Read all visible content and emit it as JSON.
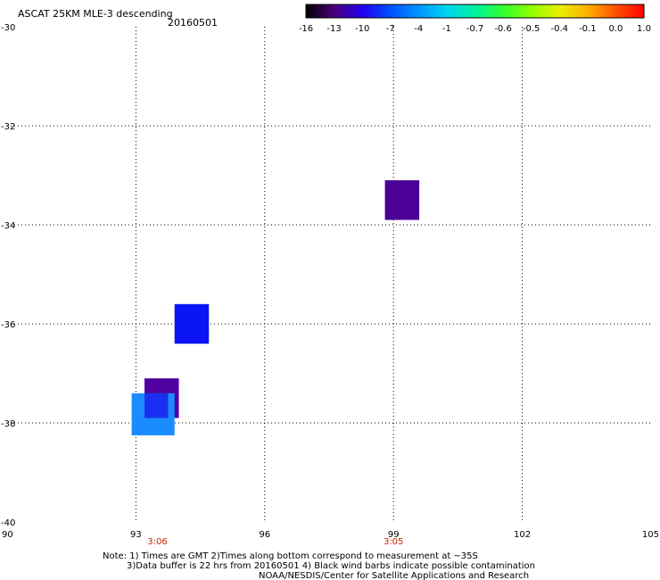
{
  "chart_data": {
    "type": "heatmap",
    "title": "ASCAT 25KM MLE-3 descending",
    "date": "20160501",
    "xlim": [
      90,
      105
    ],
    "ylim": [
      -40,
      -30
    ],
    "x_ticks": [
      90,
      93,
      96,
      99,
      102,
      105
    ],
    "x_tick_labels": [
      "90",
      "93",
      "96",
      "99",
      "102",
      "105"
    ],
    "y_ticks": [
      -30,
      -32,
      -34,
      -36,
      -38,
      -40
    ],
    "y_tick_labels": [
      "-30",
      "-32",
      "-34",
      "-36",
      "-38",
      "-40"
    ],
    "grid": true,
    "colorbar": {
      "labels": [
        "-16",
        "-13",
        "-10",
        "-7",
        "-4",
        "-1",
        "-0.7",
        "-0.6",
        "-0.5",
        "-0.4",
        "-0.1",
        "0.0",
        "1.0"
      ],
      "colors": [
        "#000000",
        "#4a007a",
        "#2200ee",
        "#0050ff",
        "#0095ff",
        "#00d5f0",
        "#00f0a0",
        "#30ff30",
        "#90ff00",
        "#e8f000",
        "#ffb000",
        "#ff5000",
        "#ff0000"
      ],
      "placement": "top-right"
    },
    "cells": [
      {
        "lon_min": 98.8,
        "lon_max": 99.6,
        "lat_min": -33.9,
        "lat_max": -33.1,
        "color": "#4b0096"
      },
      {
        "lon_min": 93.9,
        "lon_max": 94.7,
        "lat_min": -36.4,
        "lat_max": -35.6,
        "color": "#0a14f5"
      },
      {
        "lon_min": 93.2,
        "lon_max": 94.0,
        "lat_min": -37.9,
        "lat_max": -37.1,
        "color": "#5000a0"
      },
      {
        "lon_min": 92.9,
        "lon_max": 93.9,
        "lat_min": -38.25,
        "lat_max": -37.4,
        "color": "#1a8cff"
      },
      {
        "lon_min": 93.2,
        "lon_max": 93.75,
        "lat_min": -37.9,
        "lat_max": -37.4,
        "color": "#1a30f0"
      }
    ],
    "time_labels": [
      {
        "x": 93.5,
        "text": "3:06"
      },
      {
        "x": 99.0,
        "text": "3:05"
      }
    ]
  },
  "notes": {
    "line1": "Note: 1) Times are GMT 2)Times along bottom correspond to measurement at ~35S",
    "line2": "3)Data buffer is 22 hrs from 20160501 4) Black wind barbs indicate possible contamination",
    "line3": "NOAA/NESDIS/Center for Satellite Applications and Research"
  }
}
